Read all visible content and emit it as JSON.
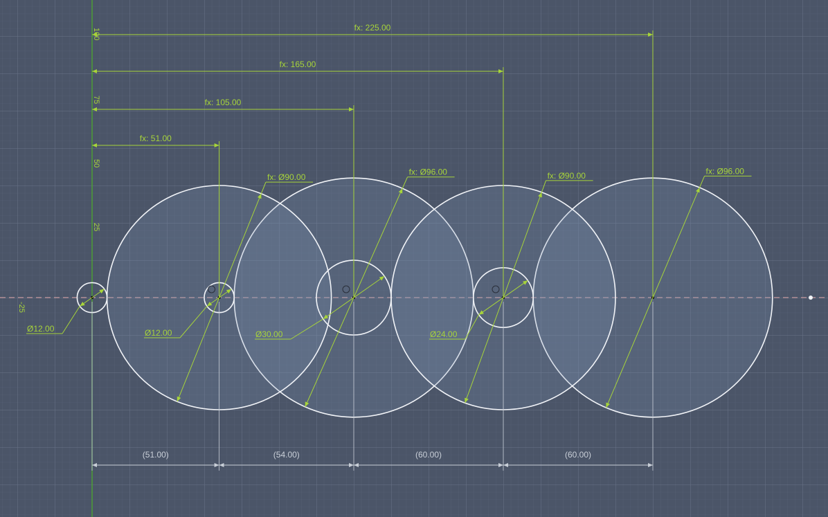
{
  "colors": {
    "background": "#4b5568",
    "grid_minor": "#5a6479",
    "grid_major": "#6a7489",
    "circle_stroke": "#f2f4f8",
    "circle_fill": "#7f97b8",
    "dimension": "#a7d43a",
    "reference_dim": "#c9cfd8",
    "centerline": "#e8b0b0",
    "axis_green": "#4caf2a"
  },
  "axis_labels": [
    "100",
    "75",
    "50",
    "25",
    "-25"
  ],
  "circles": [
    {
      "id": "hole-1",
      "center_x": 0,
      "diameter": 12
    },
    {
      "id": "gear-1-bore",
      "center_x": 51,
      "diameter": 12
    },
    {
      "id": "gear-1",
      "center_x": 51,
      "diameter": 90
    },
    {
      "id": "gear-2-bore",
      "center_x": 105,
      "diameter": 30
    },
    {
      "id": "gear-2",
      "center_x": 105,
      "diameter": 96
    },
    {
      "id": "gear-3-bore",
      "center_x": 165,
      "diameter": 24
    },
    {
      "id": "gear-3",
      "center_x": 165,
      "diameter": 90
    },
    {
      "id": "gear-4",
      "center_x": 225,
      "diameter": 96
    }
  ],
  "horizontal_dimensions": [
    {
      "label": "fx: 225.00"
    },
    {
      "label": "fx: 165.00"
    },
    {
      "label": "fx: 105.00"
    },
    {
      "label": "fx: 51.00"
    }
  ],
  "diameter_labels": [
    {
      "label": "fx: Ø90.00"
    },
    {
      "label": "fx: Ø96.00"
    },
    {
      "label": "fx: Ø90.00"
    },
    {
      "label": "fx: Ø96.00"
    }
  ],
  "bore_labels": [
    {
      "label": "Ø12.00"
    },
    {
      "label": "Ø12.00"
    },
    {
      "label": "Ø30.00"
    },
    {
      "label": "Ø24.00"
    }
  ],
  "spacing_labels": [
    {
      "label": "(51.00)"
    },
    {
      "label": "(54.00)"
    },
    {
      "label": "(60.00)"
    },
    {
      "label": "(60.00)"
    }
  ]
}
